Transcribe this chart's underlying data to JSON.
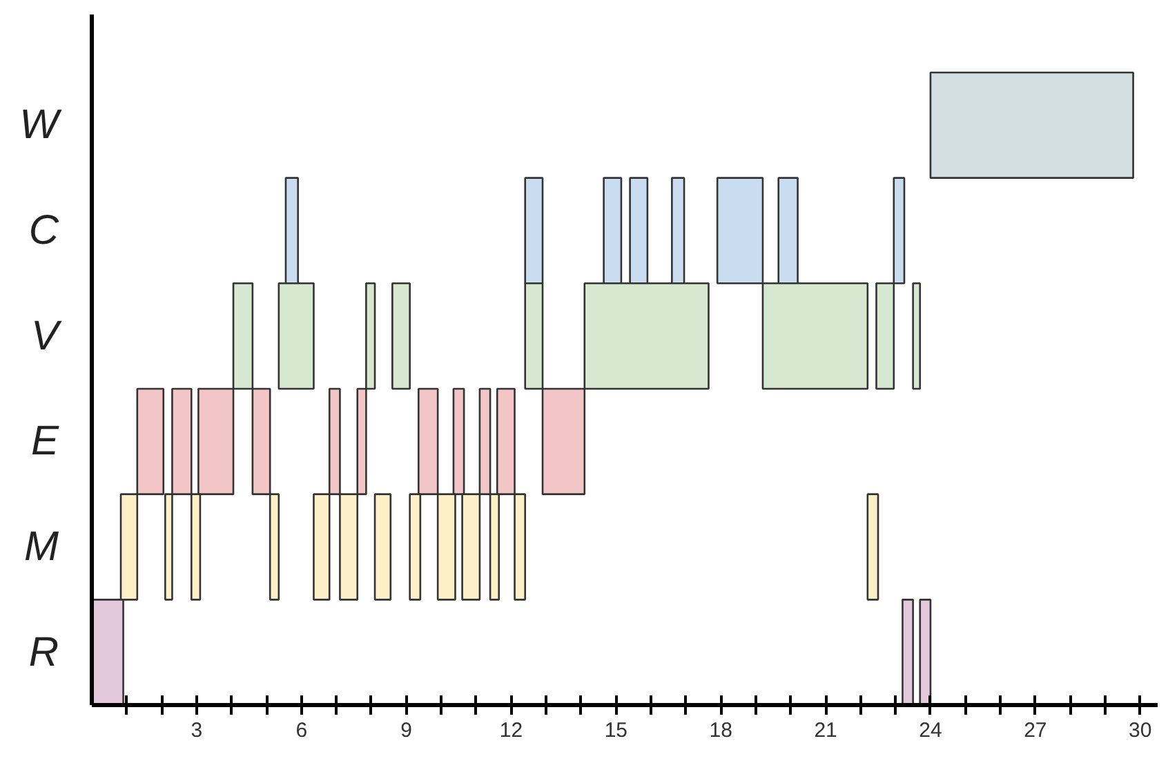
{
  "chart_data": {
    "type": "bar",
    "orientation": "horizontal",
    "categories": [
      "W",
      "C",
      "V",
      "E",
      "M",
      "R"
    ],
    "xlim": [
      0,
      30.5
    ],
    "xticks": [
      {
        "value": 1,
        "label": null
      },
      {
        "value": 2,
        "label": null
      },
      3,
      {
        "value": 4,
        "label": null
      },
      {
        "value": 5,
        "label": null
      },
      6,
      {
        "value": 7,
        "label": null
      },
      {
        "value": 8,
        "label": null
      },
      9,
      {
        "value": 10,
        "label": null
      },
      {
        "value": 11,
        "label": null
      },
      12,
      {
        "value": 13,
        "label": null
      },
      {
        "value": 14,
        "label": null
      },
      15,
      {
        "value": 16,
        "label": null
      },
      {
        "value": 17,
        "label": null
      },
      18,
      {
        "value": 19,
        "label": null
      },
      {
        "value": 20,
        "label": null
      },
      21,
      {
        "value": 22,
        "label": null
      },
      {
        "value": 23,
        "label": null
      },
      24,
      {
        "value": 25,
        "label": null
      },
      {
        "value": 26,
        "label": null
      },
      27,
      {
        "value": 28,
        "label": null
      },
      {
        "value": 29,
        "label": null
      },
      30
    ],
    "grid": false,
    "series": [
      {
        "colors": [
          "#d3dfe3",
          "#c9dcf0",
          "#d6e8d0",
          "#f2c6c6",
          "#fdf0c8",
          "#e3c8dc"
        ],
        "base": [
          24,
          5.55,
          4.05,
          1.3,
          0.83,
          0
        ],
        "values": [
          5.8,
          0.35,
          0.55,
          0.75,
          0.47,
          0.9
        ]
      },
      {
        "colors": [
          "#d3dfe3",
          "#c9dcf0",
          "#d6e8d0",
          "#f2c6c6",
          "#fdf0c8",
          "#e3c8dc"
        ],
        "base": [
          null,
          12.4,
          5.35,
          2.3,
          2.1,
          23.2
        ],
        "values": [
          null,
          0.5,
          1.0,
          0.55,
          0.2,
          0.3
        ]
      },
      {
        "colors": [
          "#d3dfe3",
          "#c9dcf0",
          "#d6e8d0",
          "#f2c6c6",
          "#fdf0c8",
          "#e3c8dc"
        ],
        "base": [
          null,
          14.65,
          7.85,
          3.05,
          2.85,
          23.7
        ],
        "values": [
          null,
          0.5,
          0.25,
          1.0,
          0.25,
          0.3
        ]
      },
      {
        "colors": [
          "#d3dfe3",
          "#c9dcf0",
          "#d6e8d0",
          "#f2c6c6",
          "#fdf0c8",
          "#e3c8dc"
        ],
        "base": [
          null,
          15.4,
          8.6,
          4.6,
          5.1,
          null
        ],
        "values": [
          null,
          0.5,
          0.5,
          0.5,
          0.25,
          null
        ]
      },
      {
        "colors": [
          "#d3dfe3",
          "#c9dcf0",
          "#d6e8d0",
          "#f2c6c6",
          "#fdf0c8",
          "#e3c8dc"
        ],
        "base": [
          null,
          16.6,
          12.4,
          6.8,
          6.35,
          null
        ],
        "values": [
          null,
          0.35,
          0.5,
          0.3,
          0.45,
          null
        ]
      },
      {
        "colors": [
          "#d3dfe3",
          "#c9dcf0",
          "#d6e8d0",
          "#f2c6c6",
          "#fdf0c8",
          "#e3c8dc"
        ],
        "base": [
          null,
          17.9,
          14.1,
          7.6,
          7.1,
          null
        ],
        "values": [
          null,
          1.3,
          3.55,
          0.25,
          0.5,
          null
        ]
      },
      {
        "colors": [
          "#d3dfe3",
          "#c9dcf0",
          "#d6e8d0",
          "#f2c6c6",
          "#fdf0c8",
          "#e3c8dc"
        ],
        "base": [
          null,
          19.65,
          19.2,
          9.35,
          8.1,
          null
        ],
        "values": [
          null,
          0.55,
          3.0,
          0.55,
          0.45,
          null
        ]
      },
      {
        "colors": [
          "#d3dfe3",
          "#c9dcf0",
          "#d6e8d0",
          "#f2c6c6",
          "#fdf0c8",
          "#e3c8dc"
        ],
        "base": [
          null,
          22.95,
          22.45,
          10.35,
          9.1,
          null
        ],
        "values": [
          null,
          0.3,
          0.5,
          0.3,
          0.3,
          null
        ]
      },
      {
        "colors": [
          "#d3dfe3",
          "#c9dcf0",
          "#d6e8d0",
          "#f2c6c6",
          "#fdf0c8",
          "#e3c8dc"
        ],
        "base": [
          null,
          null,
          23.5,
          11.1,
          9.9,
          null
        ],
        "values": [
          null,
          null,
          0.2,
          0.3,
          0.5,
          null
        ]
      },
      {
        "colors": [
          "#d3dfe3",
          "#c9dcf0",
          "#d6e8d0",
          "#f2c6c6",
          "#fdf0c8",
          "#e3c8dc"
        ],
        "base": [
          null,
          null,
          null,
          11.6,
          10.6,
          null
        ],
        "values": [
          null,
          null,
          null,
          0.5,
          0.5,
          null
        ]
      },
      {
        "colors": [
          "#d3dfe3",
          "#c9dcf0",
          "#d6e8d0",
          "#f2c6c6",
          "#fdf0c8",
          "#e3c8dc"
        ],
        "base": [
          null,
          null,
          null,
          12.9,
          11.4,
          null
        ],
        "values": [
          null,
          null,
          null,
          1.2,
          0.25,
          null
        ]
      },
      {
        "colors": [
          "#d3dfe3",
          "#c9dcf0",
          "#d6e8d0",
          "#f2c6c6",
          "#fdf0c8",
          "#e3c8dc"
        ],
        "base": [
          null,
          null,
          null,
          null,
          12.1,
          null
        ],
        "values": [
          null,
          null,
          null,
          null,
          0.3,
          null
        ]
      },
      {
        "colors": [
          "#d3dfe3",
          "#c9dcf0",
          "#d6e8d0",
          "#f2c6c6",
          "#fdf0c8",
          "#e3c8dc"
        ],
        "base": [
          null,
          null,
          null,
          null,
          22.2,
          null
        ],
        "values": [
          null,
          null,
          null,
          null,
          0.3,
          null
        ]
      }
    ]
  }
}
